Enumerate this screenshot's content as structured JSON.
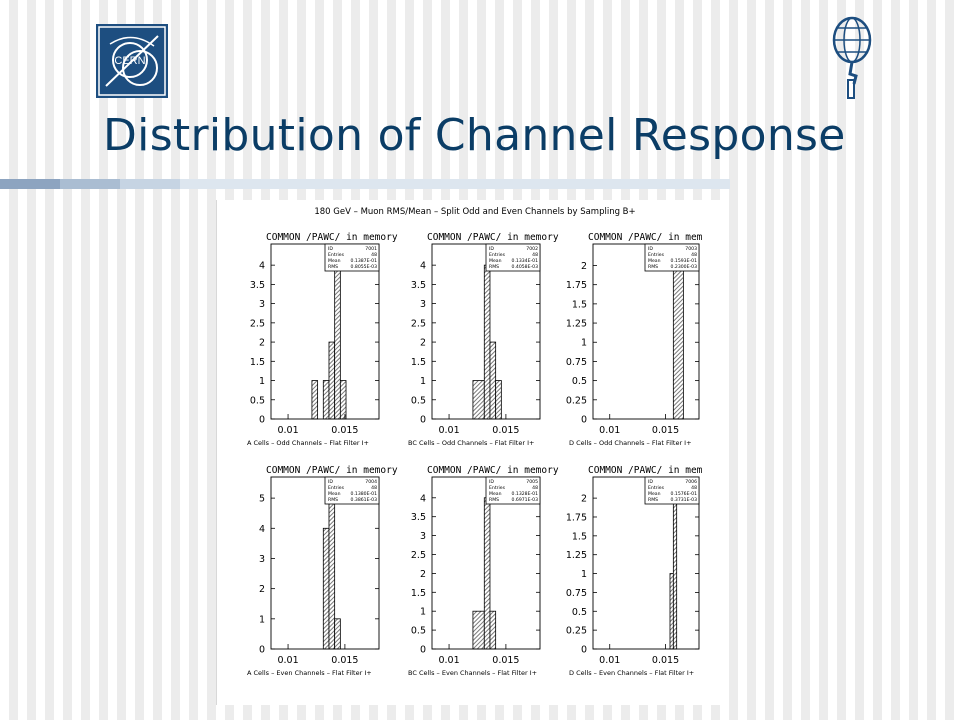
{
  "slide": {
    "title": "Distribution of Channel Response",
    "logos": {
      "left": {
        "icon": "cern-logo",
        "text": "CERN"
      },
      "right": {
        "icon": "atlas-logo"
      }
    }
  },
  "colors": {
    "title": "#0b3d66",
    "logo_blue": "#1d4e80",
    "rule": [
      "#8da4c0",
      "#aabdd2",
      "#c6d4e3",
      "#dde6ef"
    ],
    "bar_fill": "#7a7a7a"
  },
  "figure": {
    "title": "180 GeV – Muon RMS/Mean – Split Odd and Even Channels by Sampling B+",
    "panels": [
      {
        "header": "COMMON /PAWC/ in memory",
        "stats": {
          "id_label": "ID",
          "id_value": "7001",
          "entries_label": "Entries",
          "entries_value": "48",
          "mean_label": "Mean",
          "mean_value": "0.1387E-01",
          "rms_label": "RMS",
          "rms_value": "0.8055E-03"
        },
        "xlabel": "A Cells – Odd Channels – Flat Filter I+",
        "x_ticks": [
          "0.01",
          "0.015"
        ],
        "y_ticks": [
          "0",
          "0.5",
          "1",
          "1.5",
          "2",
          "2.5",
          "3",
          "3.5",
          "4"
        ]
      },
      {
        "header": "COMMON /PAWC/ in memory",
        "stats": {
          "id_label": "ID",
          "id_value": "7002",
          "entries_label": "Entries",
          "entries_value": "48",
          "mean_label": "Mean",
          "mean_value": "0.1334E-01",
          "rms_label": "RMS",
          "rms_value": "0.4058E-03"
        },
        "xlabel": "BC Cells – Odd Channels – Flat Filter I+",
        "x_ticks": [
          "0.01",
          "0.015"
        ],
        "y_ticks": [
          "0",
          "0.5",
          "1",
          "1.5",
          "2",
          "2.5",
          "3",
          "3.5",
          "4"
        ]
      },
      {
        "header": "COMMON /PAWC/ in mem",
        "stats": {
          "id_label": "ID",
          "id_value": "7003",
          "entries_label": "Entries",
          "entries_value": "48",
          "mean_label": "Mean",
          "mean_value": "0.1593E-01",
          "rms_label": "RMS",
          "rms_value": "0.2300E-03"
        },
        "xlabel": "D Cells – Odd Channels – Flat Filter I+",
        "x_ticks": [
          "0.01",
          "0.015"
        ],
        "y_ticks": [
          "0",
          "0.25",
          "0.5",
          "0.75",
          "1",
          "1.25",
          "1.5",
          "1.75",
          "2"
        ]
      },
      {
        "header": "COMMON /PAWC/ in memory",
        "stats": {
          "id_label": "ID",
          "id_value": "7004",
          "entries_label": "Entries",
          "entries_value": "48",
          "mean_label": "Mean",
          "mean_value": "0.1380E-01",
          "rms_label": "RMS",
          "rms_value": "0.3861E-03"
        },
        "xlabel": "A Cells – Even Channels – Flat Filter I+",
        "x_ticks": [
          "0.01",
          "0.015"
        ],
        "y_ticks": [
          "0",
          "1",
          "2",
          "3",
          "4",
          "5"
        ]
      },
      {
        "header": "COMMON /PAWC/ in memory",
        "stats": {
          "id_label": "ID",
          "id_value": "7005",
          "entries_label": "Entries",
          "entries_value": "48",
          "mean_label": "Mean",
          "mean_value": "0.1328E-01",
          "rms_label": "RMS",
          "rms_value": "0.6971E-03"
        },
        "xlabel": "BC Cells – Even Channels – Flat Filter I+",
        "x_ticks": [
          "0.01",
          "0.015"
        ],
        "y_ticks": [
          "0",
          "0.5",
          "1",
          "1.5",
          "2",
          "2.5",
          "3",
          "3.5",
          "4"
        ]
      },
      {
        "header": "COMMON /PAWC/ in mem",
        "stats": {
          "id_label": "ID",
          "id_value": "7006",
          "entries_label": "Entries",
          "entries_value": "48",
          "mean_label": "Mean",
          "mean_value": "0.1576E-01",
          "rms_label": "RMS",
          "rms_value": "0.3731E-03"
        },
        "xlabel": "D Cells – Even Channels – Flat Filter I+",
        "x_ticks": [
          "0.01",
          "0.015"
        ],
        "y_ticks": [
          "0",
          "0.25",
          "0.5",
          "0.75",
          "1",
          "1.25",
          "1.5",
          "1.75",
          "2"
        ]
      }
    ]
  },
  "chart_data": [
    {
      "type": "bar",
      "title": "180 GeV – Muon RMS/Mean – Split Odd and Even Channels by Sampling B+",
      "xlabel": "A Cells – Odd Channels – Flat Filter I+",
      "ylabel": "",
      "xlim": [
        0.0085,
        0.018
      ],
      "ylim": [
        0,
        4.55
      ],
      "bars": [
        {
          "x0": 0.0121,
          "x1": 0.0126,
          "value": 1
        },
        {
          "x0": 0.0131,
          "x1": 0.0136,
          "value": 1
        },
        {
          "x0": 0.0136,
          "x1": 0.0141,
          "value": 2
        },
        {
          "x0": 0.0141,
          "x1": 0.0146,
          "value": 4
        },
        {
          "x0": 0.0146,
          "x1": 0.0151,
          "value": 1
        }
      ]
    },
    {
      "type": "bar",
      "xlabel": "BC Cells – Odd Channels – Flat Filter I+",
      "ylabel": "",
      "xlim": [
        0.0085,
        0.018
      ],
      "ylim": [
        0,
        4.55
      ],
      "bars": [
        {
          "x0": 0.0121,
          "x1": 0.0131,
          "value": 1
        },
        {
          "x0": 0.0131,
          "x1": 0.0136,
          "value": 4
        },
        {
          "x0": 0.0136,
          "x1": 0.0141,
          "value": 2
        },
        {
          "x0": 0.0141,
          "x1": 0.0146,
          "value": 1
        }
      ]
    },
    {
      "type": "bar",
      "xlabel": "D Cells – Odd Channels – Flat Filter I+",
      "ylabel": "",
      "xlim": [
        0.0085,
        0.018
      ],
      "ylim": [
        0,
        2.28
      ],
      "bars": [
        {
          "x0": 0.0157,
          "x1": 0.0166,
          "value": 2
        }
      ]
    },
    {
      "type": "bar",
      "xlabel": "A Cells – Even Channels – Flat Filter I+",
      "ylabel": "",
      "xlim": [
        0.0085,
        0.018
      ],
      "ylim": [
        0,
        5.7
      ],
      "bars": [
        {
          "x0": 0.0131,
          "x1": 0.0136,
          "value": 4
        },
        {
          "x0": 0.0136,
          "x1": 0.0141,
          "value": 5
        },
        {
          "x0": 0.0141,
          "x1": 0.0146,
          "value": 1
        }
      ]
    },
    {
      "type": "bar",
      "xlabel": "BC Cells – Even Channels – Flat Filter I+",
      "ylabel": "",
      "xlim": [
        0.0085,
        0.018
      ],
      "ylim": [
        0,
        4.55
      ],
      "bars": [
        {
          "x0": 0.0121,
          "x1": 0.0131,
          "value": 1
        },
        {
          "x0": 0.0131,
          "x1": 0.0136,
          "value": 4
        },
        {
          "x0": 0.0136,
          "x1": 0.0141,
          "value": 1
        }
      ]
    },
    {
      "type": "bar",
      "xlabel": "D Cells – Even Channels – Flat Filter I+",
      "ylabel": "",
      "xlim": [
        0.0085,
        0.018
      ],
      "ylim": [
        0,
        2.28
      ],
      "bars": [
        {
          "x0": 0.0154,
          "x1": 0.0157,
          "value": 1
        },
        {
          "x0": 0.0157,
          "x1": 0.016,
          "value": 2
        }
      ]
    }
  ]
}
